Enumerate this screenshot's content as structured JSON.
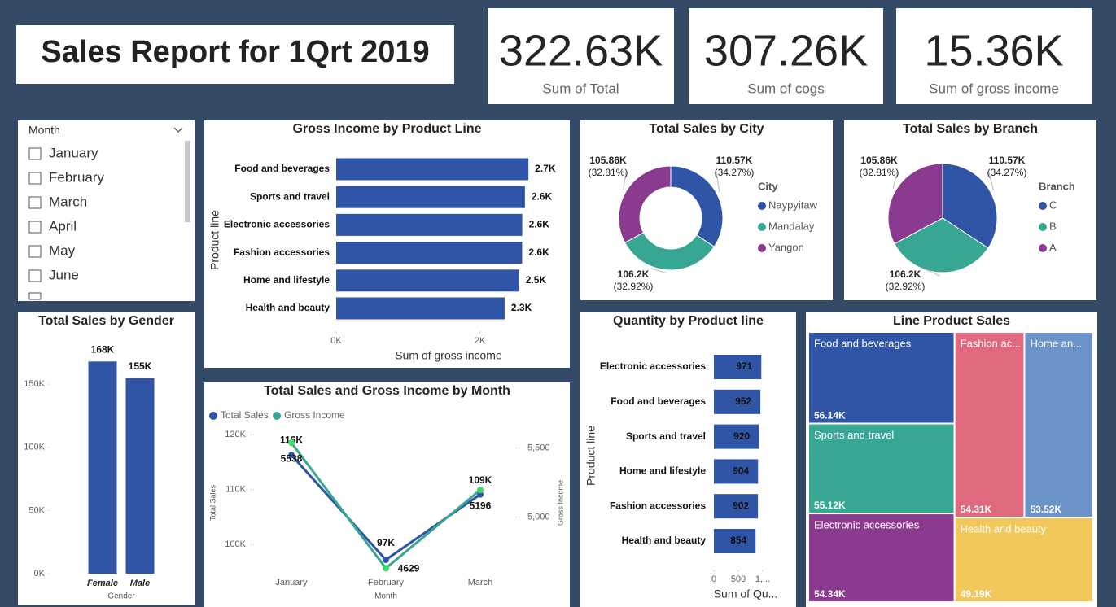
{
  "title": "Sales Report for 1Qrt 2019",
  "kpis": [
    {
      "value": "322.63K",
      "label": "Sum of Total"
    },
    {
      "value": "307.26K",
      "label": "Sum of cogs"
    },
    {
      "value": "15.36K",
      "label": "Sum of gross income"
    }
  ],
  "slicer": {
    "title": "Month",
    "items": [
      "January",
      "February",
      "March",
      "April",
      "May",
      "June"
    ]
  },
  "chart_data": [
    {
      "type": "bar",
      "orientation": "horizontal",
      "title": "Gross Income by Product Line",
      "categories": [
        "Food and beverages",
        "Sports and travel",
        "Electronic accessories",
        "Fashion accessories",
        "Home and lifestyle",
        "Health and beauty"
      ],
      "values": [
        2673.56,
        2624.9,
        2587.5,
        2585.99,
        2545,
        2342.56
      ],
      "value_labels": [
        "2.7K",
        "2.6K",
        "2.6K",
        "2.6K",
        "2.5K",
        "2.3K"
      ],
      "color": "#3155a6",
      "xlim": [
        0,
        3000
      ],
      "xticks": [
        {
          "value": 0,
          "label": "0K"
        },
        {
          "value": 2000,
          "label": "2K"
        }
      ],
      "xlabel": "Sum of gross income",
      "ylabel": "Product line"
    },
    {
      "type": "donut",
      "title": "Total Sales by City",
      "legend_title": "City",
      "categories": [
        "Naypyitaw",
        "Mandalay",
        "Yangon"
      ],
      "values": [
        110570,
        106200,
        105860
      ],
      "value_labels": [
        "110.57K",
        "106.2K",
        "105.86K"
      ],
      "percent_labels": [
        "(34.27%)",
        "(32.92%)",
        "(32.81%)"
      ],
      "colors": [
        "#3155a6",
        "#37a794",
        "#8b3b8f"
      ]
    },
    {
      "type": "pie",
      "title": "Total Sales by Branch",
      "legend_title": "Branch",
      "categories": [
        "C",
        "B",
        "A"
      ],
      "values": [
        110570,
        106200,
        105860
      ],
      "value_labels": [
        "110.57K",
        "106.2K",
        "105.86K"
      ],
      "percent_labels": [
        "(34.27%)",
        "(32.92%)",
        "(32.81%)"
      ],
      "colors": [
        "#3155a6",
        "#37a794",
        "#8b3b8f"
      ]
    },
    {
      "type": "bar",
      "orientation": "vertical",
      "title": "Total Sales by Gender",
      "categories": [
        "Female",
        "Male"
      ],
      "values": [
        167880,
        154750
      ],
      "value_labels": [
        "168K",
        "155K"
      ],
      "color": "#3155a6",
      "ylim": [
        0,
        190000
      ],
      "yticks": [
        {
          "value": 0,
          "label": "0K"
        },
        {
          "value": 50000,
          "label": "50K"
        },
        {
          "value": 100000,
          "label": "100K"
        },
        {
          "value": 150000,
          "label": "150K"
        }
      ],
      "xlabel": "Gender"
    },
    {
      "type": "line",
      "title": "Total Sales and Gross Income by Month",
      "categories": [
        "January",
        "February",
        "March"
      ],
      "series": [
        {
          "name": "Total Sales",
          "color": "#3155a6",
          "values": [
            116290,
            97220,
            109120
          ],
          "value_labels": [
            "116K",
            "97K",
            "109K"
          ]
        },
        {
          "name": "Gross Income",
          "color": "#37a794",
          "axis": "y2",
          "values": [
            5538,
            4629,
            5196
          ]
        }
      ],
      "ylim": [
        94700,
        122100
      ],
      "yticks": [
        {
          "value": 100000,
          "label": "100K"
        },
        {
          "value": 110000,
          "label": "110K"
        },
        {
          "value": 120000,
          "label": "120K"
        }
      ],
      "y2lim": [
        4590,
        5680
      ],
      "y2ticks": [
        {
          "value": 5000,
          "label": "5,000"
        },
        {
          "value": 5500,
          "label": "5,500"
        }
      ],
      "xlabel": "Month",
      "ylabel": "Total Sales",
      "y2label": "Gross Income"
    },
    {
      "type": "bar",
      "orientation": "horizontal",
      "title": "Quantity by Product line",
      "categories": [
        "Electronic accessories",
        "Food and beverages",
        "Sports and travel",
        "Home and lifestyle",
        "Fashion accessories",
        "Health and beauty"
      ],
      "values": [
        971,
        952,
        920,
        904,
        902,
        854
      ],
      "color": "#3155a6",
      "xlim": [
        0,
        1050
      ],
      "xticks": [
        0,
        500,
        {
          "value": 1000,
          "label": "1,..."
        }
      ],
      "xlabel": "Sum of Qu...",
      "ylabel": "Product line"
    },
    {
      "type": "treemap",
      "title": "Line Product Sales",
      "categories": [
        "Food and beverages",
        "Sports and travel",
        "Electronic accessories",
        "Fashion ac...",
        "Home an...",
        "Health and beauty"
      ],
      "values": [
        56140,
        55120,
        54340,
        54310,
        53520,
        49190
      ],
      "value_labels": [
        "56.14K",
        "55.12K",
        "54.34K",
        "54.31K",
        "53.52K",
        "49.19K"
      ],
      "colors": [
        "#3155a6",
        "#37a794",
        "#8b3b8f",
        "#e0697d",
        "#6b93c8",
        "#f2c75c"
      ]
    }
  ]
}
